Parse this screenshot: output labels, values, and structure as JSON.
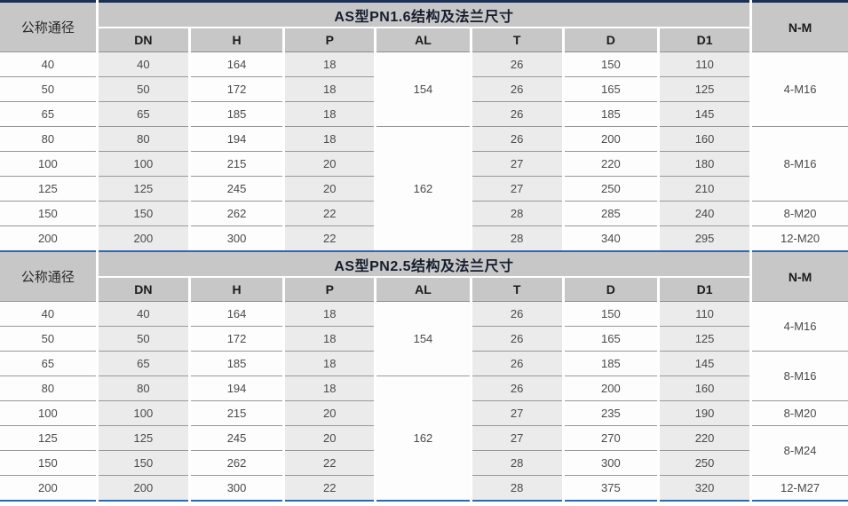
{
  "page": {
    "background": "#ffffff",
    "header_bg": "#c7c7c7",
    "stripe_bg": "#ebebeb",
    "top_rule_color": "#1c2f55",
    "blue_rule_color": "#2e68ad"
  },
  "tables": [
    {
      "nominal_label": "公称通径",
      "title": "AS型PN1.6结构及法兰尺寸",
      "nm_label": "N-M",
      "columns": [
        "DN",
        "H",
        "P",
        "AL",
        "T",
        "D",
        "D1"
      ],
      "rows": [
        [
          "40",
          "40",
          "164",
          "18",
          "26",
          "150",
          "110"
        ],
        [
          "50",
          "50",
          "172",
          "18",
          "26",
          "165",
          "125"
        ],
        [
          "65",
          "65",
          "185",
          "18",
          "26",
          "185",
          "145"
        ],
        [
          "80",
          "80",
          "194",
          "18",
          "26",
          "200",
          "160"
        ],
        [
          "100",
          "100",
          "215",
          "20",
          "27",
          "220",
          "180"
        ],
        [
          "125",
          "125",
          "245",
          "20",
          "27",
          "250",
          "210"
        ],
        [
          "150",
          "150",
          "262",
          "22",
          "28",
          "285",
          "240"
        ],
        [
          "200",
          "200",
          "300",
          "22",
          "28",
          "340",
          "295"
        ]
      ],
      "al_groups": [
        {
          "value": "154",
          "span": 3
        },
        {
          "value": "162",
          "span": 5
        }
      ],
      "nm_groups": [
        {
          "value": "4-M16",
          "span": 3
        },
        {
          "value": "8-M16",
          "span": 3
        },
        {
          "value": "8-M20",
          "span": 1
        },
        {
          "value": "12-M20",
          "span": 1
        }
      ]
    },
    {
      "nominal_label": "公称通径",
      "title": "AS型PN2.5结构及法兰尺寸",
      "nm_label": "N-M",
      "columns": [
        "DN",
        "H",
        "P",
        "AL",
        "T",
        "D",
        "D1"
      ],
      "rows": [
        [
          "40",
          "40",
          "164",
          "18",
          "26",
          "150",
          "110"
        ],
        [
          "50",
          "50",
          "172",
          "18",
          "26",
          "165",
          "125"
        ],
        [
          "65",
          "65",
          "185",
          "18",
          "26",
          "185",
          "145"
        ],
        [
          "80",
          "80",
          "194",
          "18",
          "26",
          "200",
          "160"
        ],
        [
          "100",
          "100",
          "215",
          "20",
          "27",
          "235",
          "190"
        ],
        [
          "125",
          "125",
          "245",
          "20",
          "27",
          "270",
          "220"
        ],
        [
          "150",
          "150",
          "262",
          "22",
          "28",
          "300",
          "250"
        ],
        [
          "200",
          "200",
          "300",
          "22",
          "28",
          "375",
          "320"
        ]
      ],
      "al_groups": [
        {
          "value": "154",
          "span": 3
        },
        {
          "value": "162",
          "span": 5
        }
      ],
      "nm_groups": [
        {
          "value": "4-M16",
          "span": 2
        },
        {
          "value": "8-M16",
          "span": 2
        },
        {
          "value": "8-M20",
          "span": 1
        },
        {
          "value": "8-M24",
          "span": 2
        },
        {
          "value": "12-M27",
          "span": 1
        }
      ]
    }
  ]
}
